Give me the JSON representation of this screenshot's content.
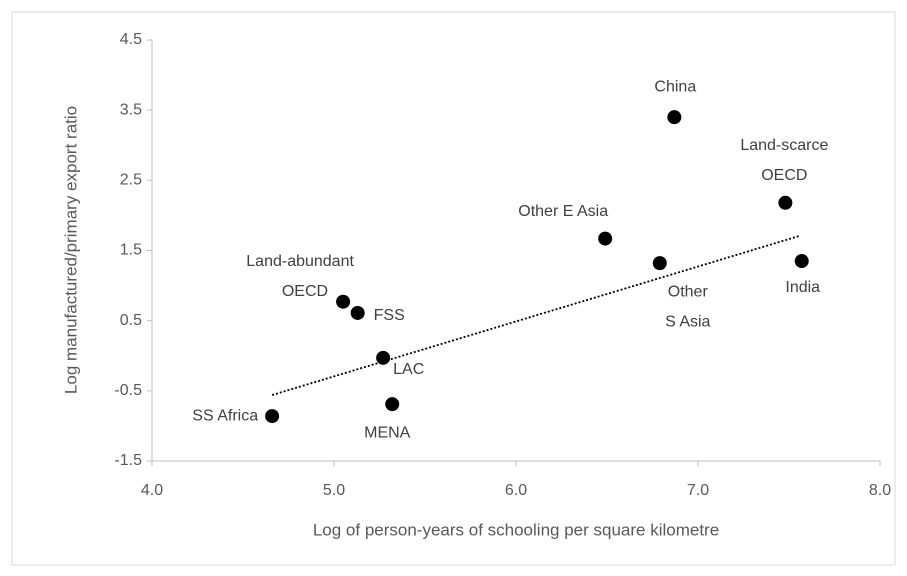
{
  "chart_data": {
    "type": "scatter",
    "xlabel": "Log of person-years of schooling per square kilometre",
    "ylabel": "Log manufactured/primary export ratio",
    "labels": [
      [
        "SS Africa"
      ],
      [
        "Land-abundant",
        "OECD"
      ],
      [
        "FSS"
      ],
      [
        "LAC"
      ],
      [
        "MENA"
      ],
      [
        "Other E Asia"
      ],
      [
        "Other",
        "S Asia"
      ],
      [
        "China"
      ],
      [
        "Land-scarce",
        "OECD"
      ],
      [
        "India"
      ]
    ],
    "x": [
      4.66,
      5.05,
      5.13,
      5.27,
      5.32,
      6.49,
      6.79,
      6.87,
      7.48,
      7.57
    ],
    "values": [
      -0.86,
      0.77,
      0.61,
      -0.03,
      -0.69,
      1.67,
      1.32,
      3.4,
      2.18,
      1.35
    ],
    "color": "#000000",
    "trendline": {
      "x": [
        4.66,
        7.56
      ],
      "values": [
        -0.56,
        1.71
      ],
      "color": "#000000"
    },
    "xlim": [
      4,
      8
    ],
    "xticks": [
      {
        "value": 4,
        "label": "4.0"
      },
      {
        "value": 5,
        "label": "5.0"
      },
      {
        "value": 6,
        "label": "6.0"
      },
      {
        "value": 7,
        "label": "7.0"
      },
      {
        "value": 8,
        "label": "8.0"
      }
    ],
    "ylim": [
      -1.5,
      4.5
    ],
    "yticks": [
      -1.5,
      -0.5,
      0.5,
      1.5,
      2.5,
      3.5,
      4.5
    ],
    "grid": false
  }
}
